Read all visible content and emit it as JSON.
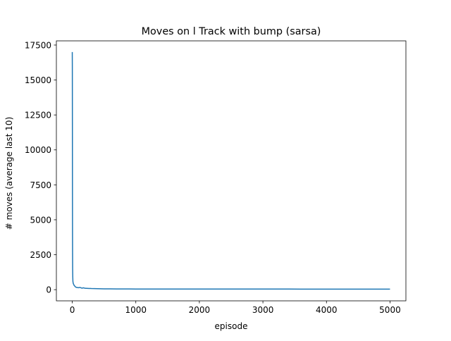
{
  "chart_data": {
    "type": "line",
    "title": "Moves on l Track with bump (sarsa)",
    "xlabel": "episode",
    "ylabel": "# moves (average last 10)",
    "xlim": [
      -250,
      5250
    ],
    "ylim": [
      -800,
      17800
    ],
    "grid": false,
    "x_ticks": [
      0,
      1000,
      2000,
      3000,
      4000,
      5000
    ],
    "x_tick_labels": [
      "0",
      "1000",
      "2000",
      "3000",
      "4000",
      "5000"
    ],
    "y_ticks": [
      0,
      2500,
      5000,
      7500,
      10000,
      12500,
      15000,
      17500
    ],
    "y_tick_labels": [
      "0",
      "2500",
      "5000",
      "7500",
      "10000",
      "12500",
      "15000",
      "17500"
    ],
    "series": [
      {
        "color": "#1f77b4",
        "points": [
          [
            0,
            17000
          ],
          [
            1,
            16000
          ],
          [
            2,
            12000
          ],
          [
            3,
            7000
          ],
          [
            4,
            4000
          ],
          [
            5,
            2500
          ],
          [
            6,
            1500
          ],
          [
            8,
            900
          ],
          [
            10,
            600
          ],
          [
            15,
            450
          ],
          [
            20,
            400
          ],
          [
            30,
            300
          ],
          [
            40,
            250
          ],
          [
            50,
            200
          ],
          [
            60,
            170
          ],
          [
            80,
            150
          ],
          [
            100,
            140
          ],
          [
            120,
            160
          ],
          [
            150,
            110
          ],
          [
            180,
            130
          ],
          [
            200,
            100
          ],
          [
            250,
            90
          ],
          [
            300,
            80
          ],
          [
            350,
            75
          ],
          [
            400,
            70
          ],
          [
            450,
            65
          ],
          [
            500,
            60
          ],
          [
            600,
            55
          ],
          [
            700,
            52
          ],
          [
            800,
            50
          ],
          [
            900,
            48
          ],
          [
            1000,
            47
          ],
          [
            1200,
            46
          ],
          [
            1400,
            45
          ],
          [
            1600,
            45
          ],
          [
            1800,
            44
          ],
          [
            2000,
            44
          ],
          [
            2200,
            43
          ],
          [
            2400,
            43
          ],
          [
            2600,
            43
          ],
          [
            2800,
            42
          ],
          [
            3000,
            42
          ],
          [
            3200,
            42
          ],
          [
            3400,
            42
          ],
          [
            3600,
            41
          ],
          [
            3800,
            41
          ],
          [
            4000,
            41
          ],
          [
            4200,
            41
          ],
          [
            4400,
            41
          ],
          [
            4600,
            40
          ],
          [
            4800,
            40
          ],
          [
            5000,
            40
          ]
        ]
      }
    ]
  }
}
